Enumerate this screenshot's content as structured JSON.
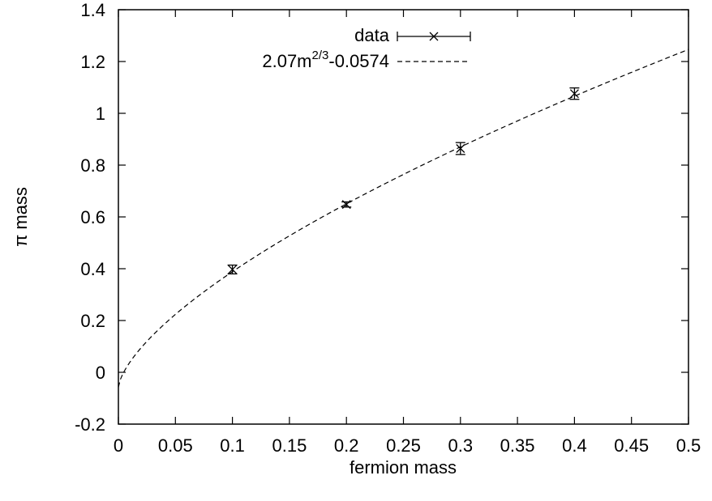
{
  "chart_data": {
    "type": "scatter",
    "title": "",
    "xlabel": "fermion mass",
    "ylabel": "π mass",
    "xlim": [
      0,
      0.5
    ],
    "ylim": [
      -0.2,
      1.4
    ],
    "xticks": [
      "0",
      "0.05",
      "0.1",
      "0.15",
      "0.2",
      "0.25",
      "0.3",
      "0.35",
      "0.4",
      "0.45",
      "0.5"
    ],
    "yticks": [
      "-0.2",
      "0",
      "0.2",
      "0.4",
      "0.6",
      "0.8",
      "1",
      "1.2",
      "1.4"
    ],
    "grid": false,
    "legend_position": "top-right",
    "series": [
      {
        "name": "data",
        "style": "points-with-errorbars",
        "color": "#000000",
        "points": [
          {
            "x": 0.1,
            "y": 0.397,
            "err": 0.017
          },
          {
            "x": 0.2,
            "y": 0.648,
            "err": 0.01
          },
          {
            "x": 0.3,
            "y": 0.864,
            "err": 0.023
          },
          {
            "x": 0.4,
            "y": 1.076,
            "err": 0.022
          }
        ]
      },
      {
        "name_base": "2.07m",
        "name_sup": "2/3",
        "name_tail": "-0.0574",
        "style": "dashed-curve",
        "color": "#000000",
        "formula": {
          "a": 2.07,
          "exponent": 0.6667,
          "b": -0.0574
        }
      }
    ]
  }
}
